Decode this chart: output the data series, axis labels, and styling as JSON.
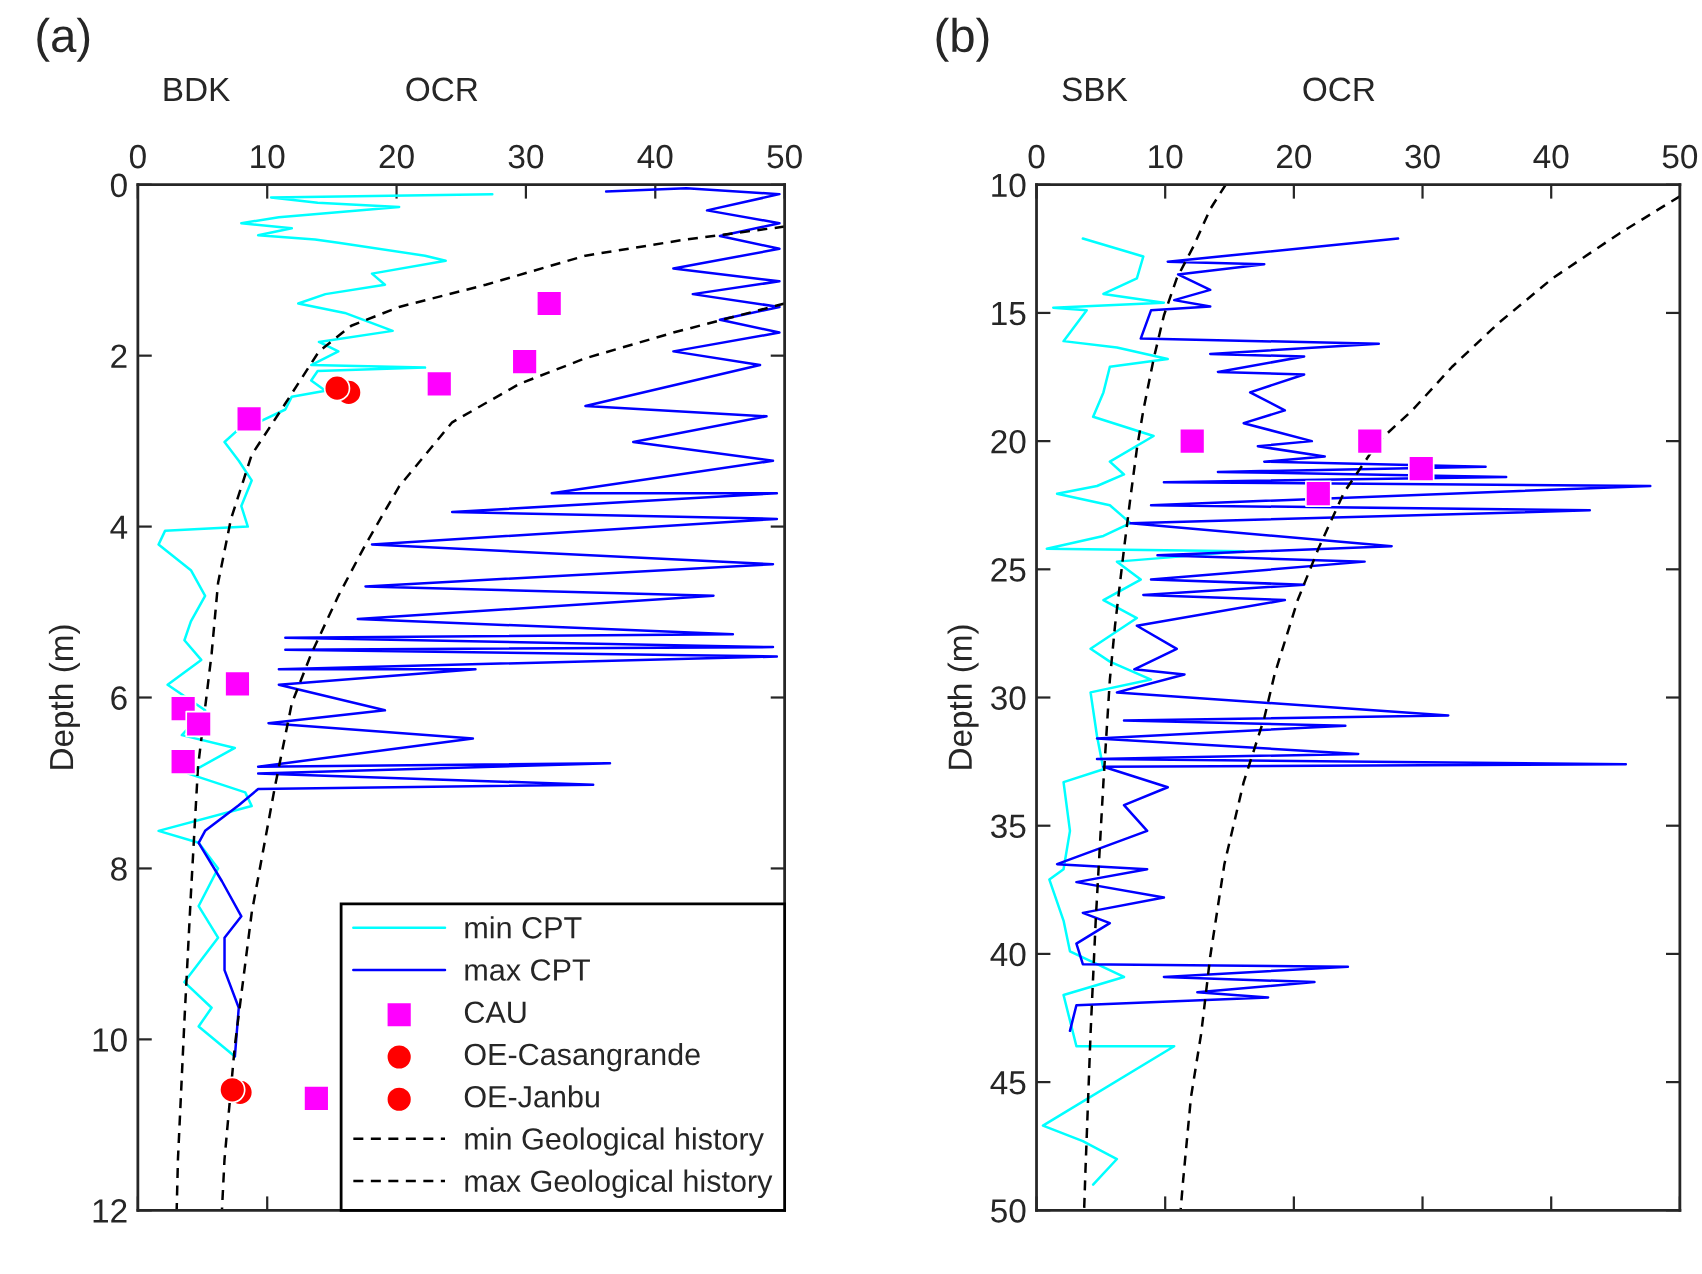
{
  "chart_data": [
    {
      "type": "line",
      "title": "(a)",
      "ylabel": "Depth (m)",
      "annotations": [
        "BDK",
        "OCR"
      ],
      "xlim": [
        0,
        50
      ],
      "xticks": [
        0,
        10,
        20,
        30,
        40,
        50
      ],
      "ylim": [
        12,
        0
      ],
      "yticks": [
        0,
        2,
        4,
        6,
        8,
        10,
        12
      ],
      "legend": "bottom right",
      "series": [
        {
          "type": "line",
          "name": "min CPT",
          "color": "#00ffff",
          "line_style": "solid",
          "x": [
            27.4,
            10.3,
            13.9,
            20.2,
            10.9,
            8.0,
            11.9,
            9.3,
            13.7,
            15.5,
            22.2,
            23.8,
            18.1,
            19.1,
            14.5,
            12.4,
            16.0,
            19.7,
            14.0,
            15.5,
            13.4,
            22.2,
            13.9,
            13.4,
            14.5,
            11.9,
            11.4,
            9.3,
            7.8,
            6.7,
            7.8,
            8.8,
            8.0,
            8.5,
            2.1,
            1.6,
            4.1,
            5.2,
            4.1,
            3.6,
            4.9,
            2.3,
            5.2,
            3.4,
            7.5,
            3.9,
            8.3,
            8.8,
            1.6,
            4.7,
            6.2,
            4.7,
            6.2,
            3.6,
            5.7,
            4.7,
            7.5
          ],
          "values": [
            0.11,
            0.15,
            0.21,
            0.26,
            0.38,
            0.45,
            0.51,
            0.59,
            0.64,
            0.68,
            0.83,
            0.89,
            1.04,
            1.17,
            1.28,
            1.39,
            1.5,
            1.71,
            1.84,
            1.95,
            2.11,
            2.14,
            2.18,
            2.29,
            2.41,
            2.48,
            2.63,
            2.78,
            2.86,
            3.01,
            3.23,
            3.46,
            3.76,
            4.0,
            4.05,
            4.21,
            4.51,
            4.81,
            5.11,
            5.33,
            5.56,
            5.85,
            6.15,
            6.44,
            6.59,
            6.89,
            7.11,
            7.27,
            7.56,
            7.7,
            8.0,
            8.44,
            8.81,
            9.33,
            9.63,
            9.85,
            10.2
          ]
        },
        {
          "type": "line",
          "name": "max CPT",
          "color": "#0000ff",
          "line_style": "solid",
          "x": [
            36.2,
            42.4,
            49.6,
            44.0,
            49.6,
            45.0,
            49.6,
            41.4,
            49.6,
            42.9,
            49.6,
            45.0,
            49.6,
            41.4,
            48.1,
            34.6,
            48.6,
            38.3,
            49.1,
            32.0,
            49.4,
            24.3,
            49.4,
            18.1,
            49.1,
            17.6,
            44.5,
            17.0,
            46.0,
            11.4,
            49.1,
            11.4,
            49.4,
            10.9,
            26.1,
            10.9,
            19.1,
            10.1,
            25.9,
            9.3,
            36.5,
            9.3,
            35.2,
            9.3,
            7.8,
            5.2,
            4.7,
            6.5,
            8.0,
            6.7,
            6.7,
            7.8,
            7.5
          ],
          "values": [
            0.08,
            0.04,
            0.11,
            0.3,
            0.45,
            0.6,
            0.75,
            0.98,
            1.13,
            1.28,
            1.43,
            1.58,
            1.73,
            1.95,
            2.11,
            2.59,
            2.71,
            3.01,
            3.23,
            3.61,
            3.61,
            3.83,
            3.91,
            4.21,
            4.44,
            4.7,
            4.81,
            5.08,
            5.26,
            5.3,
            5.41,
            5.44,
            5.52,
            5.67,
            5.67,
            5.85,
            6.15,
            6.3,
            6.48,
            6.81,
            6.77,
            6.89,
            7.02,
            7.07,
            7.26,
            7.56,
            7.7,
            8.15,
            8.56,
            8.81,
            9.19,
            9.63,
            10.2
          ]
        },
        {
          "type": "scatter",
          "name": "CAU",
          "color": "#ff00ff",
          "marker": "square",
          "x": [
            31.8,
            29.9,
            23.3,
            8.6,
            7.7,
            3.5,
            4.7,
            3.5,
            13.8
          ],
          "values": [
            1.39,
            2.07,
            2.33,
            2.74,
            5.84,
            6.13,
            6.31,
            6.75,
            10.69
          ]
        },
        {
          "type": "scatter",
          "name": "OE-Casangrande",
          "color": "#ff0000",
          "marker": "circle",
          "x": [
            15.4,
            7.3
          ],
          "values": [
            2.38,
            10.59
          ]
        },
        {
          "type": "scatter",
          "name": "OE-Janbu",
          "color": "#ff0000",
          "marker": "circle",
          "x": [
            16.3,
            7.9
          ],
          "values": [
            2.43,
            10.62
          ]
        },
        {
          "type": "line",
          "name": "min Geological history",
          "color": "#000000",
          "line_style": "dashed",
          "x": [
            50,
            42.4,
            34.6,
            26.9,
            20.2,
            16.5,
            14.0,
            11.4,
            8.8,
            7.2,
            6.2,
            5.7,
            4.65,
            4.1,
            3.6,
            3.1,
            3.0
          ],
          "values": [
            0.49,
            0.64,
            0.83,
            1.17,
            1.43,
            1.65,
            1.95,
            2.56,
            3.16,
            3.91,
            4.66,
            5.49,
            6.81,
            8.3,
            9.78,
            11.4,
            12
          ]
        },
        {
          "type": "line",
          "name": "max Geological history",
          "color": "#000000",
          "line_style": "dashed",
          "x": [
            50,
            41.4,
            34.6,
            29.5,
            24.3,
            20.2,
            17.6,
            15.5,
            13.4,
            11.9,
            10.6,
            8.8,
            7.5,
            6.7,
            6.5
          ],
          "values": [
            1.39,
            1.73,
            2.03,
            2.33,
            2.78,
            3.53,
            4.21,
            4.81,
            5.49,
            6.07,
            7.04,
            8.52,
            10.07,
            11.4,
            12
          ]
        }
      ]
    },
    {
      "type": "line",
      "title": "(b)",
      "ylabel": "Depth (m)",
      "annotations": [
        "SBK",
        "OCR"
      ],
      "xlim": [
        0,
        50
      ],
      "xticks": [
        0,
        10,
        20,
        30,
        40,
        50
      ],
      "ylim": [
        50,
        10
      ],
      "yticks": [
        10,
        15,
        20,
        25,
        30,
        35,
        40,
        45,
        50
      ],
      "series": [
        {
          "type": "line",
          "color": "#00ffff",
          "line_style": "solid",
          "x": [
            3.6,
            8.3,
            7.8,
            5.2,
            9.9,
            1.3,
            3.9,
            2.1,
            6.25,
            10.2,
            5.7,
            5.2,
            4.4,
            9.1,
            5.7,
            6.8,
            4.7,
            1.6,
            5.7,
            7.3,
            5.2,
            0.8,
            16.1,
            6.25,
            8.1,
            5.2,
            7.8,
            4.2,
            5.7,
            8.9,
            4.2,
            4.7,
            5.2,
            2.1,
            2.6,
            2.1,
            1.0,
            2.1,
            2.6,
            6.8,
            2.1,
            3.1,
            10.7,
            0.5,
            3.6,
            6.25,
            4.4
          ],
          "values": [
            12.1,
            12.8,
            13.65,
            14.26,
            14.6,
            14.8,
            14.9,
            16.1,
            16.35,
            16.8,
            17.1,
            18.1,
            19.05,
            19.8,
            20.8,
            21.3,
            21.75,
            22.05,
            22.5,
            23.2,
            23.7,
            24.2,
            24.3,
            24.7,
            25.4,
            26.2,
            26.9,
            28.1,
            28.6,
            29.3,
            29.8,
            31.5,
            32.8,
            33.3,
            35.2,
            36.7,
            37.1,
            38.7,
            39.9,
            40.9,
            41.6,
            43.6,
            43.6,
            46.7,
            47.3,
            48.0,
            49.0
          ]
        },
        {
          "type": "line",
          "color": "#0000ff",
          "line_style": "solid",
          "x": [
            28.1,
            10.2,
            17.7,
            11.0,
            13.5,
            10.7,
            13.5,
            8.9,
            8.1,
            26.6,
            13.5,
            20.8,
            14.1,
            20.8,
            16.6,
            19.3,
            16.1,
            21.4,
            17.2,
            22.4,
            17.7,
            34.9,
            14.1,
            36.5,
            9.9,
            47.7,
            8.9,
            43.0,
            7.3,
            27.6,
            9.4,
            25.5,
            8.9,
            20.8,
            8.3,
            19.3,
            7.8,
            10.9,
            7.6,
            11.5,
            6.25,
            32.0,
            6.8,
            24.0,
            4.7,
            25.0,
            4.7,
            45.8,
            5.2,
            10.2,
            6.8,
            8.6,
            1.6,
            8.6,
            3.1,
            9.9,
            3.6,
            5.7,
            3.1,
            3.6,
            24.2,
            9.9,
            21.6,
            12.5,
            18.0,
            3.1,
            2.6
          ],
          "values": [
            12.1,
            13.0,
            13.1,
            13.5,
            14.1,
            14.5,
            14.75,
            14.9,
            16.0,
            16.2,
            16.6,
            16.7,
            17.3,
            17.4,
            18.1,
            18.8,
            19.3,
            20.0,
            20.2,
            20.6,
            20.8,
            21.0,
            21.2,
            21.4,
            21.6,
            21.75,
            22.5,
            22.7,
            23.2,
            24.1,
            24.45,
            24.7,
            25.4,
            25.6,
            26.0,
            26.2,
            27.2,
            28.1,
            28.9,
            29.1,
            29.8,
            30.7,
            30.9,
            31.1,
            31.6,
            32.2,
            32.4,
            32.6,
            32.7,
            33.5,
            34.2,
            35.2,
            36.5,
            36.7,
            37.2,
            37.8,
            38.4,
            38.8,
            39.6,
            40.4,
            40.5,
            40.9,
            41.1,
            41.5,
            41.7,
            42.0,
            43.0
          ]
        },
        {
          "type": "scatter",
          "color": "#ff00ff",
          "marker": "square",
          "x": [
            12.1,
            25.9,
            29.9,
            21.9
          ],
          "values": [
            20.0,
            20.0,
            21.07,
            22.05
          ]
        },
        {
          "type": "line",
          "color": "#000000",
          "line_style": "dashed",
          "x": [
            14.7,
            13.5,
            12.2,
            10.9,
            9.9,
            9.1,
            8.3,
            7.8,
            7.3,
            6.8,
            6.1,
            5.7,
            5.2,
            4.6,
            4.2,
            3.8,
            3.7
          ],
          "values": [
            10,
            10.95,
            12.4,
            13.65,
            15.1,
            16.8,
            18.8,
            20.3,
            22.2,
            24.2,
            27.2,
            29.3,
            33.3,
            38.7,
            43.1,
            48.5,
            50
          ]
        },
        {
          "type": "line",
          "color": "#000000",
          "line_style": "dashed",
          "x": [
            50,
            45.3,
            40.1,
            35.9,
            32.3,
            29.2,
            26.6,
            23.9,
            21.9,
            20.3,
            18.5,
            17.7,
            16.1,
            14.6,
            13.5,
            12.8,
            12.0,
            11.4,
            11.2
          ],
          "values": [
            10.45,
            11.9,
            13.65,
            15.4,
            17.1,
            18.8,
            20.0,
            22.0,
            24.2,
            26.2,
            29.1,
            30.8,
            33.3,
            36.5,
            40.1,
            43.1,
            45.6,
            48.8,
            50
          ]
        }
      ]
    }
  ]
}
